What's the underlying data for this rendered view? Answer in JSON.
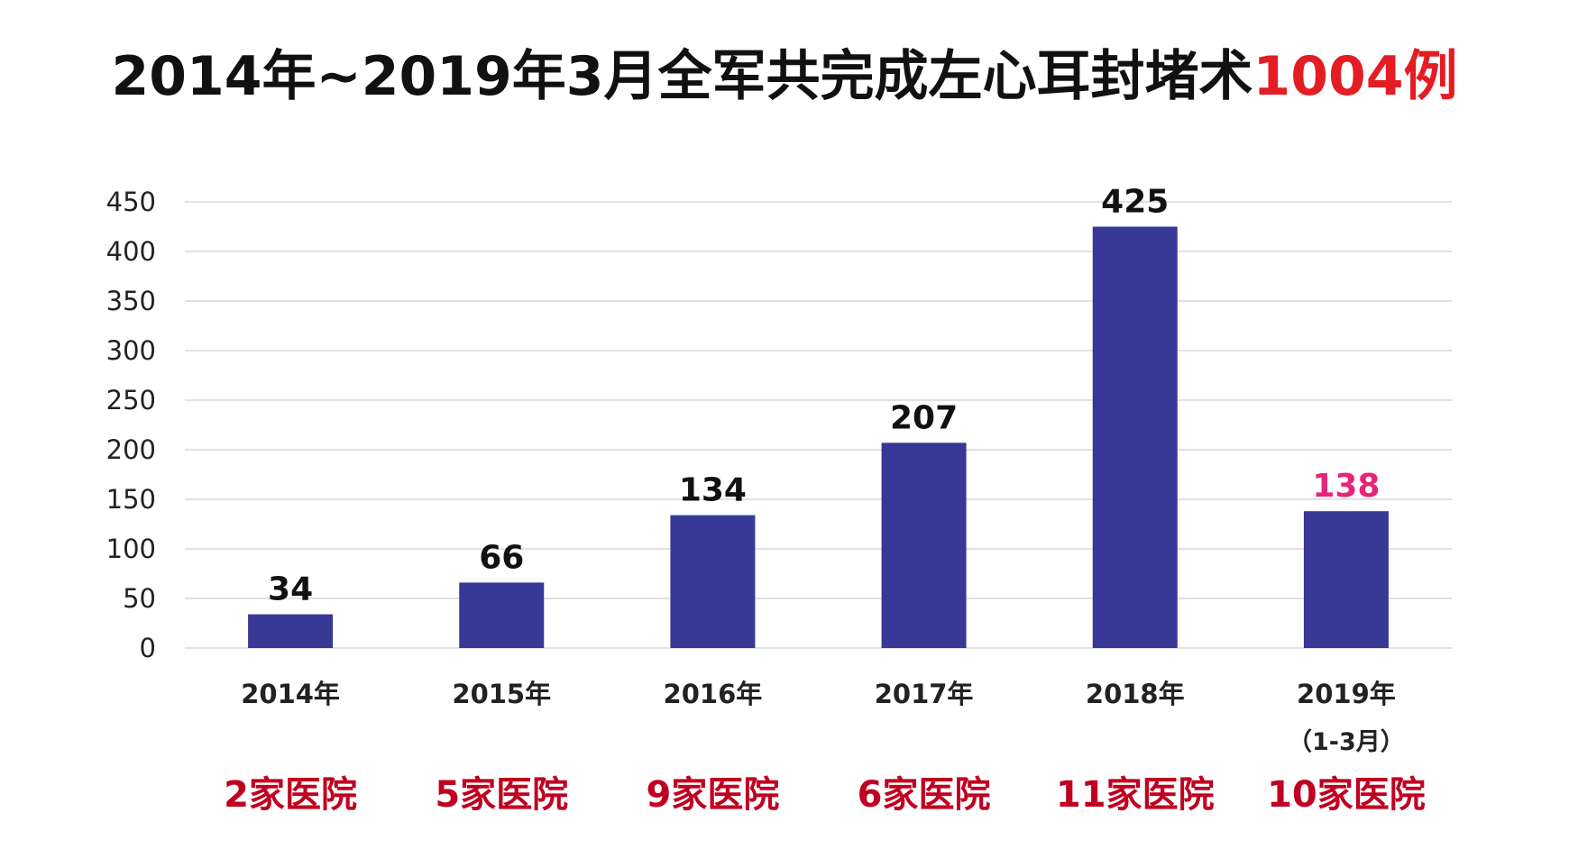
{
  "title": {
    "main": "2014年~2019年3月全军共完成左心耳封堵术",
    "highlight": "1004例"
  },
  "colors": {
    "bar": "#383896",
    "title_highlight": "#e41c23",
    "label_default": "#111111",
    "label_highlight": "#e8247a",
    "hospital_text": "#c00020",
    "gridline": "#d9d9d9"
  },
  "chart_data": {
    "type": "bar",
    "categories": [
      "2014年",
      "2015年",
      "2016年",
      "2017年",
      "2018年",
      "2019年"
    ],
    "category_sublabels": [
      "",
      "",
      "",
      "",
      "",
      "（1-3月）"
    ],
    "values": [
      34,
      66,
      134,
      207,
      425,
      138
    ],
    "data_labels": [
      "34",
      "66",
      "134",
      "207",
      "425",
      "138"
    ],
    "highlighted_labels": [
      false,
      false,
      false,
      false,
      false,
      true
    ],
    "hospital_labels": [
      "2家医院",
      "5家医院",
      "9家医院",
      "6家医院",
      "11家医院",
      "10家医院"
    ],
    "ylim": [
      0,
      450
    ],
    "yticks": [
      0,
      50,
      100,
      150,
      200,
      250,
      300,
      350,
      400,
      450
    ],
    "grid": true,
    "legend": "none"
  }
}
